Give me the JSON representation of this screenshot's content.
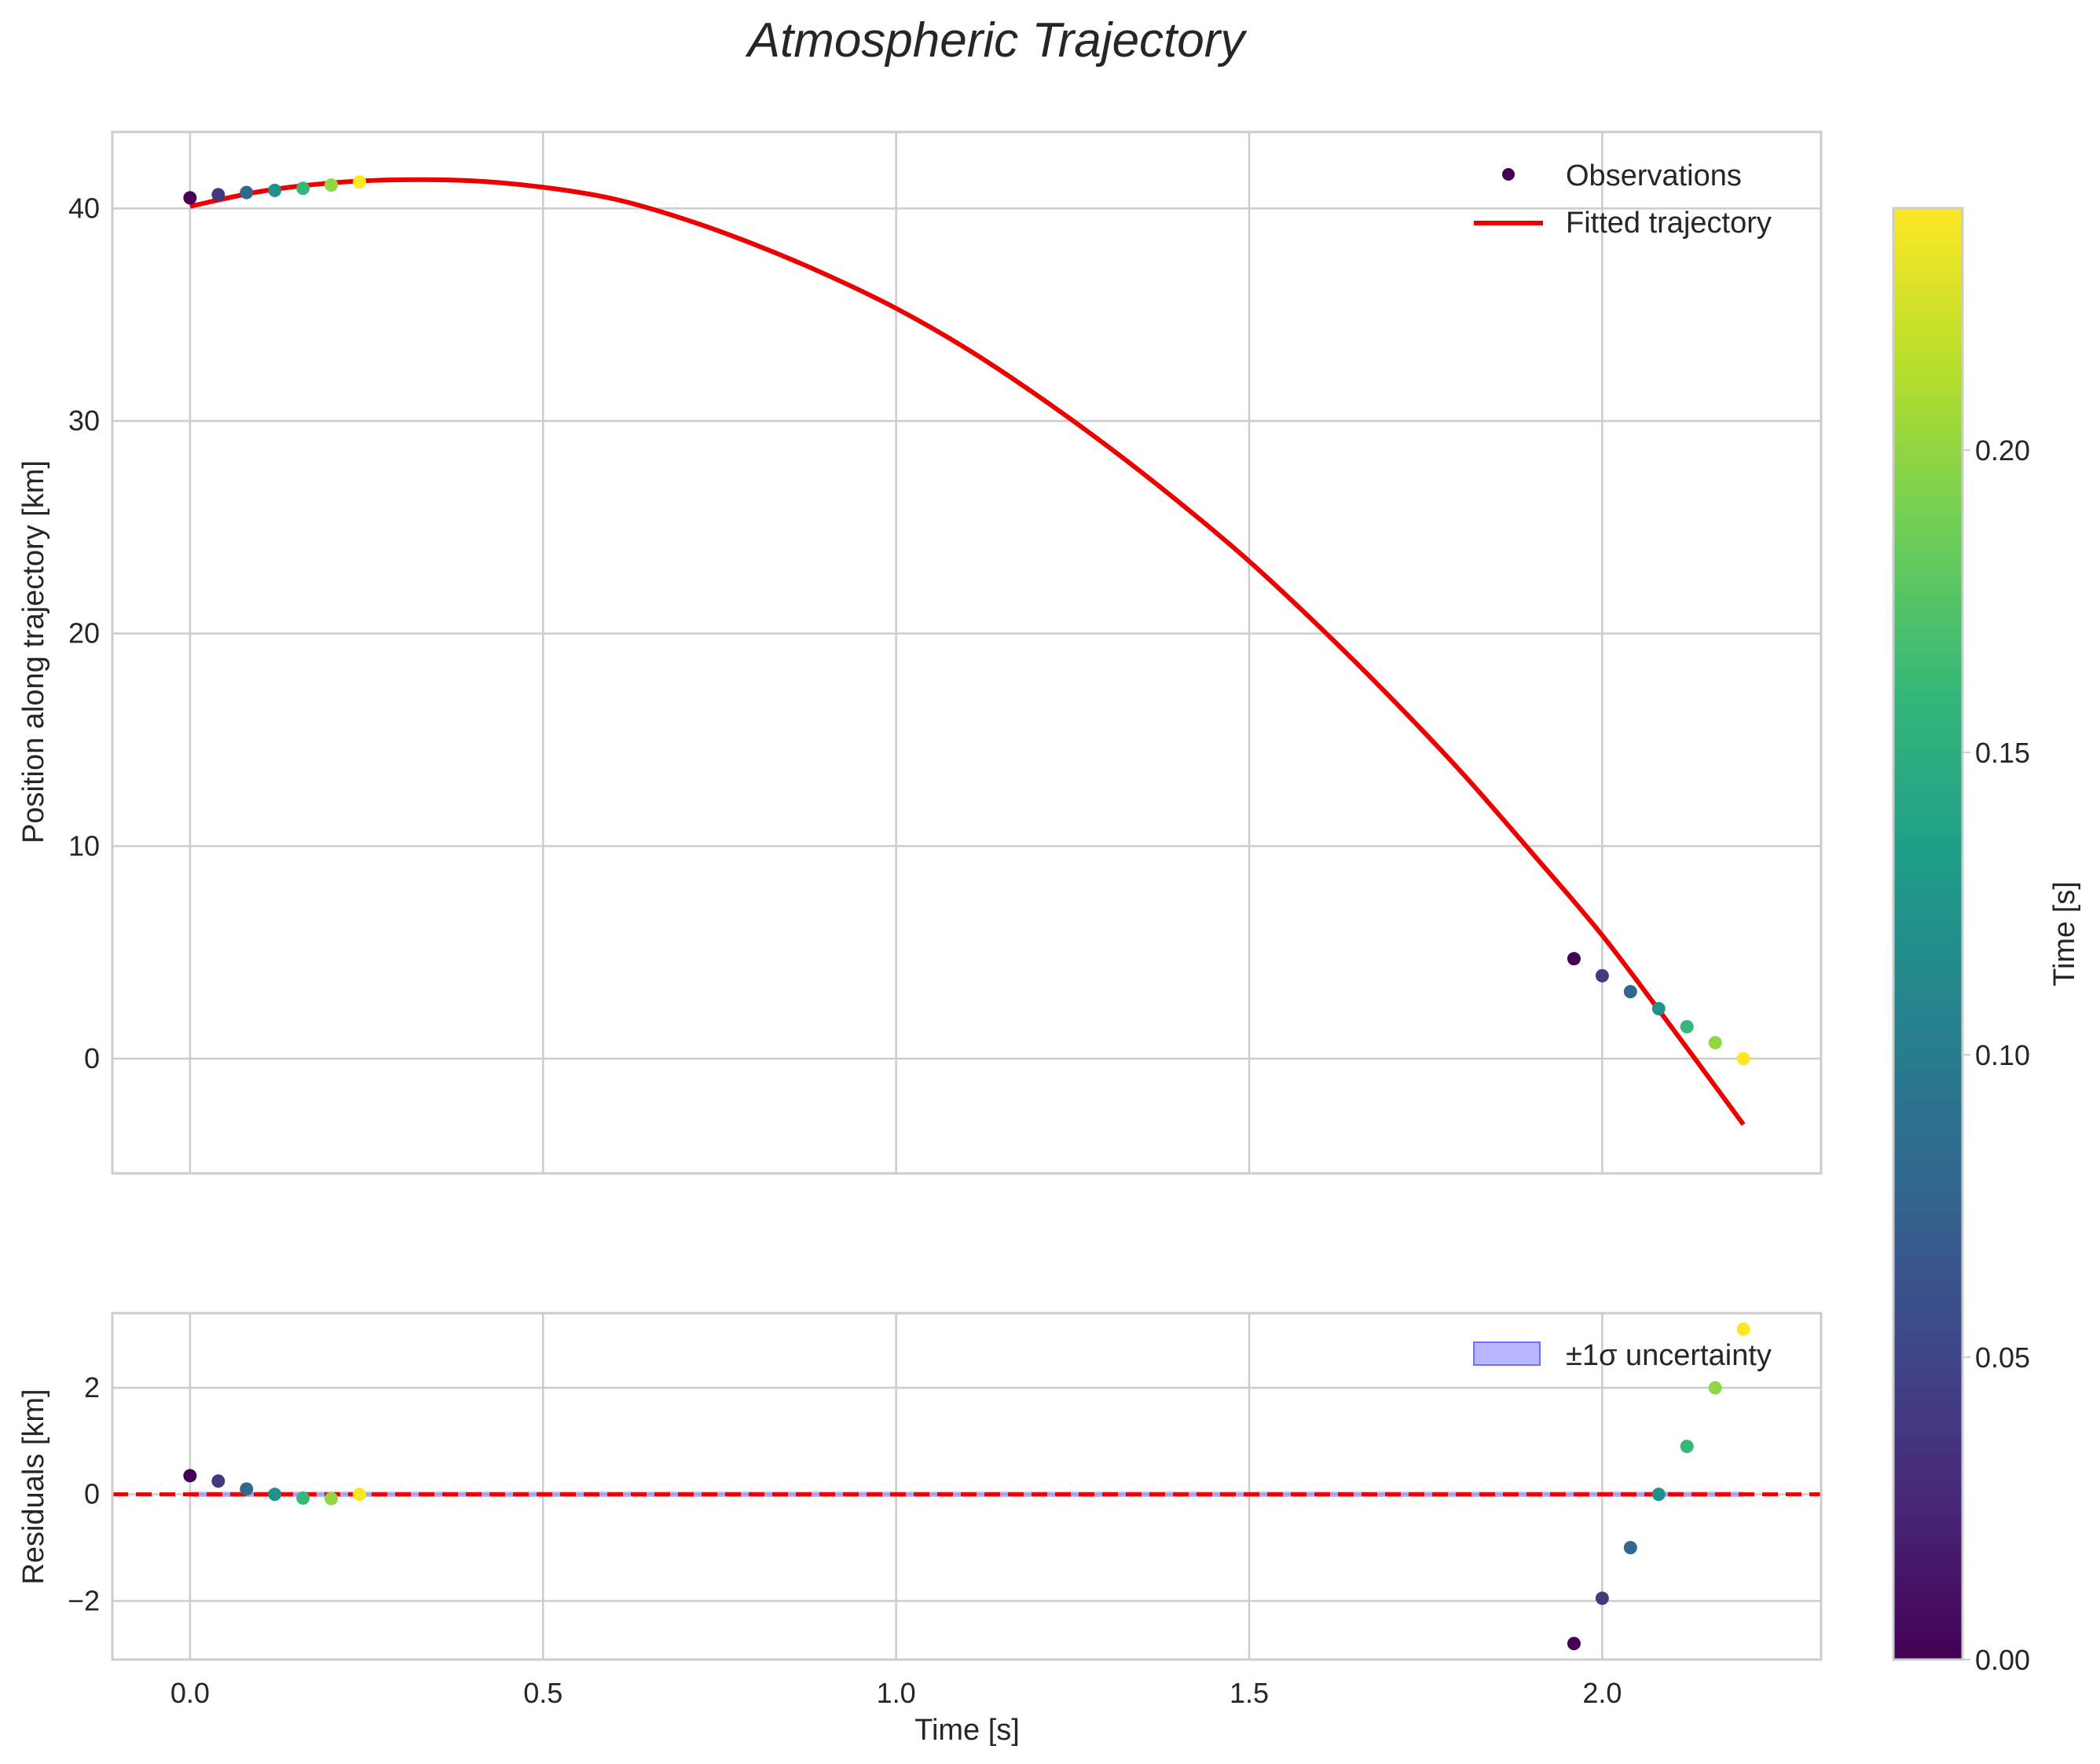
{
  "chart_data": {
    "type": "scatter",
    "title": "Atmospheric Trajectory",
    "colorbar": {
      "label": "Time [s]",
      "range": [
        0.0,
        0.24
      ],
      "ticks": [
        0.0,
        0.05,
        0.1,
        0.15,
        0.2
      ],
      "tick_labels": [
        "0.00",
        "0.05",
        "0.10",
        "0.15",
        "0.20"
      ],
      "colormap": [
        "#440154",
        "#482878",
        "#3e4989",
        "#31688e",
        "#26828e",
        "#1f9e89",
        "#35b779",
        "#6ece58",
        "#b5de2b",
        "#fde725"
      ]
    },
    "top_panel": {
      "ylabel": "Position along trajectory [km]",
      "xlim": [
        -0.11,
        2.31
      ],
      "ylim": [
        -5.4,
        43.6
      ],
      "x_ticks": [
        0.0,
        0.5,
        1.0,
        1.5,
        2.0
      ],
      "y_ticks": [
        0,
        10,
        20,
        30,
        40
      ],
      "y_tick_labels": [
        "0",
        "10",
        "20",
        "30",
        "40"
      ],
      "legend": [
        "Observations",
        "Fitted trajectory"
      ],
      "fit_color": "#ee0000",
      "fit_curve": {
        "x": [
          0.0,
          0.1,
          0.2,
          0.3,
          0.4,
          0.5,
          0.6,
          0.7,
          0.8,
          0.9,
          1.0,
          1.1,
          1.2,
          1.3,
          1.4,
          1.5,
          1.6,
          1.7,
          1.8,
          1.9,
          2.0,
          2.1,
          2.2
        ],
        "y": [
          40.1,
          40.8,
          41.2,
          41.35,
          41.3,
          41.0,
          40.45,
          39.5,
          38.3,
          36.9,
          35.3,
          33.4,
          31.2,
          28.8,
          26.2,
          23.4,
          20.3,
          17.0,
          13.5,
          9.7,
          5.8,
          1.4,
          -3.1
        ]
      },
      "observations": [
        {
          "x": 0.0,
          "y": 40.5,
          "c": 0.0
        },
        {
          "x": 0.04,
          "y": 40.65,
          "c": 0.04
        },
        {
          "x": 0.08,
          "y": 40.75,
          "c": 0.08
        },
        {
          "x": 0.12,
          "y": 40.85,
          "c": 0.12
        },
        {
          "x": 0.16,
          "y": 40.95,
          "c": 0.16
        },
        {
          "x": 0.2,
          "y": 41.1,
          "c": 0.2
        },
        {
          "x": 0.24,
          "y": 41.25,
          "c": 0.24
        },
        {
          "x": 1.96,
          "y": 4.7,
          "c": 0.0
        },
        {
          "x": 2.0,
          "y": 3.9,
          "c": 0.04
        },
        {
          "x": 2.04,
          "y": 3.15,
          "c": 0.08
        },
        {
          "x": 2.08,
          "y": 2.35,
          "c": 0.12
        },
        {
          "x": 2.12,
          "y": 1.5,
          "c": 0.16
        },
        {
          "x": 2.16,
          "y": 0.75,
          "c": 0.2
        },
        {
          "x": 2.2,
          "y": 0.0,
          "c": 0.24
        }
      ]
    },
    "bottom_panel": {
      "xlabel": "Time [s]",
      "ylabel": "Residuals [km]",
      "xlim": [
        -0.11,
        2.31
      ],
      "ylim": [
        -3.1,
        3.4
      ],
      "x_ticks": [
        0.0,
        0.5,
        1.0,
        1.5,
        2.0
      ],
      "x_tick_labels": [
        "0.0",
        "0.5",
        "1.0",
        "1.5",
        "2.0"
      ],
      "y_ticks": [
        -2,
        0,
        2
      ],
      "y_tick_labels": [
        "−2",
        "0",
        "2"
      ],
      "legend": [
        "±1σ uncertainty"
      ],
      "zero_line_color": "#ee0000",
      "band_color": "#7070ff",
      "band": {
        "x": [
          0.0,
          2.2
        ],
        "lower": -0.05,
        "upper": 0.05
      },
      "residuals": [
        {
          "x": 0.0,
          "y": 0.35,
          "c": 0.0
        },
        {
          "x": 0.04,
          "y": 0.25,
          "c": 0.04
        },
        {
          "x": 0.08,
          "y": 0.1,
          "c": 0.08
        },
        {
          "x": 0.12,
          "y": 0.0,
          "c": 0.12
        },
        {
          "x": 0.16,
          "y": -0.07,
          "c": 0.16
        },
        {
          "x": 0.2,
          "y": -0.08,
          "c": 0.2
        },
        {
          "x": 0.24,
          "y": 0.0,
          "c": 0.24
        },
        {
          "x": 1.96,
          "y": -2.8,
          "c": 0.0
        },
        {
          "x": 2.0,
          "y": -1.95,
          "c": 0.04
        },
        {
          "x": 2.04,
          "y": -1.0,
          "c": 0.08
        },
        {
          "x": 2.08,
          "y": 0.0,
          "c": 0.12
        },
        {
          "x": 2.12,
          "y": 0.9,
          "c": 0.16
        },
        {
          "x": 2.16,
          "y": 2.0,
          "c": 0.2
        },
        {
          "x": 2.2,
          "y": 3.1,
          "c": 0.24
        }
      ]
    }
  }
}
